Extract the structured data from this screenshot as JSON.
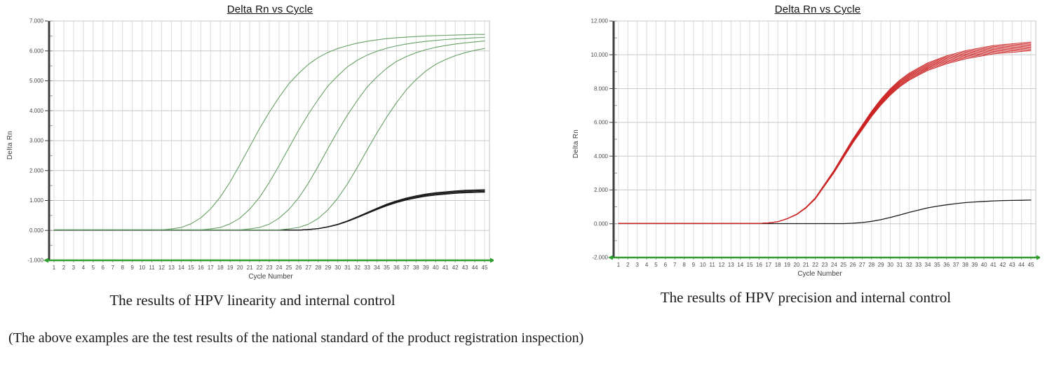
{
  "palette": {
    "hpv_green": "#67a067",
    "hpv_red": "#cc2323",
    "internal_control_black": "#1b1b1b",
    "baseline_green": "#2f9e2f",
    "grid_vertical": "#dcdcdc",
    "grid_horizontal": "#c8c8c8",
    "plot_border": "#c2c2c2",
    "axis_dark": "#3f3f3f",
    "tick_text": "#4d4d4d"
  },
  "footnote": "(The above examples are the test results of the national standard of the product registration inspection)",
  "chart_data": [
    {
      "type": "line",
      "title": "Delta Rn vs Cycle",
      "xlabel": "Cycle Number",
      "ylabel": "Delta Rn",
      "caption": "The results of HPV linearity and internal control",
      "x_range": [
        1,
        45
      ],
      "ylim": [
        -1,
        7
      ],
      "y_major_step": 1,
      "y_minor_step": 0.5,
      "y_tick_labels": [
        "7.000",
        "6.000",
        "5.000",
        "4.000",
        "3.000",
        "2.000",
        "1.000",
        "0.000",
        "-1.000"
      ],
      "grid": true,
      "legend": "none",
      "series": [
        {
          "name": "internal-control",
          "color": "#1b1b1b",
          "width": 1.2,
          "replicates": 4,
          "spread": 0.032,
          "values": [
            0.01,
            0.01,
            0.01,
            0.01,
            0.01,
            0.01,
            0.01,
            0.01,
            0.01,
            0.01,
            0.01,
            0.01,
            0.01,
            0.01,
            0.01,
            0.01,
            0.01,
            0.01,
            0.01,
            0.01,
            0.01,
            0.01,
            0.01,
            0.01,
            0.01,
            0.01,
            0.03,
            0.06,
            0.12,
            0.2,
            0.31,
            0.44,
            0.58,
            0.72,
            0.85,
            0.96,
            1.05,
            1.12,
            1.18,
            1.22,
            1.25,
            1.28,
            1.3,
            1.31,
            1.32
          ]
        },
        {
          "name": "hpv-linearity-curve-1",
          "color": "#67a067",
          "width": 1.1,
          "replicates": 1,
          "spread": 0,
          "values": [
            0.02,
            0.02,
            0.02,
            0.02,
            0.02,
            0.02,
            0.02,
            0.02,
            0.02,
            0.02,
            0.02,
            0.02,
            0.05,
            0.1,
            0.22,
            0.42,
            0.72,
            1.12,
            1.62,
            2.2,
            2.8,
            3.4,
            3.95,
            4.45,
            4.9,
            5.25,
            5.55,
            5.78,
            5.95,
            6.08,
            6.18,
            6.26,
            6.32,
            6.37,
            6.41,
            6.44,
            6.46,
            6.48,
            6.5,
            6.51,
            6.52,
            6.53,
            6.54,
            6.55,
            6.55
          ]
        },
        {
          "name": "hpv-linearity-curve-2",
          "color": "#67a067",
          "width": 1.1,
          "replicates": 1,
          "spread": 0,
          "values": [
            0.02,
            0.02,
            0.02,
            0.02,
            0.02,
            0.02,
            0.02,
            0.02,
            0.02,
            0.02,
            0.02,
            0.02,
            0.02,
            0.02,
            0.02,
            0.02,
            0.05,
            0.1,
            0.22,
            0.41,
            0.71,
            1.1,
            1.6,
            2.17,
            2.76,
            3.35,
            3.89,
            4.38,
            4.83,
            5.17,
            5.47,
            5.69,
            5.86,
            5.99,
            6.09,
            6.17,
            6.23,
            6.28,
            6.32,
            6.35,
            6.38,
            6.4,
            6.42,
            6.44,
            6.45
          ]
        },
        {
          "name": "hpv-linearity-curve-3",
          "color": "#67a067",
          "width": 1.1,
          "replicates": 1,
          "spread": 0,
          "values": [
            0.02,
            0.02,
            0.02,
            0.02,
            0.02,
            0.02,
            0.02,
            0.02,
            0.02,
            0.02,
            0.02,
            0.02,
            0.02,
            0.02,
            0.02,
            0.02,
            0.02,
            0.02,
            0.02,
            0.02,
            0.05,
            0.1,
            0.21,
            0.41,
            0.7,
            1.09,
            1.58,
            2.15,
            2.74,
            3.32,
            3.86,
            4.35,
            4.79,
            5.13,
            5.42,
            5.65,
            5.81,
            5.94,
            6.04,
            6.12,
            6.18,
            6.23,
            6.27,
            6.3,
            6.33
          ]
        },
        {
          "name": "hpv-linearity-curve-4",
          "color": "#67a067",
          "width": 1.1,
          "replicates": 1,
          "spread": 0,
          "values": [
            0.02,
            0.02,
            0.02,
            0.02,
            0.02,
            0.02,
            0.02,
            0.02,
            0.02,
            0.02,
            0.02,
            0.02,
            0.02,
            0.02,
            0.02,
            0.02,
            0.02,
            0.02,
            0.02,
            0.02,
            0.02,
            0.02,
            0.02,
            0.02,
            0.05,
            0.1,
            0.21,
            0.4,
            0.69,
            1.08,
            1.56,
            2.11,
            2.69,
            3.26,
            3.79,
            4.27,
            4.7,
            5.04,
            5.33,
            5.55,
            5.71,
            5.84,
            5.94,
            6.02,
            6.08
          ]
        }
      ]
    },
    {
      "type": "line",
      "title": "Delta Rn vs Cycle",
      "xlabel": "Cycle Number",
      "ylabel": "Delta Rn",
      "caption": "The results of HPV precision and internal control",
      "x_range": [
        1,
        45
      ],
      "ylim": [
        -2,
        12
      ],
      "y_major_step": 2,
      "y_minor_step": 1,
      "y_tick_labels": [
        "12.000",
        "10.000",
        "8.000",
        "6.000",
        "4.000",
        "2.000",
        "0.000",
        "-2.000"
      ],
      "grid": true,
      "legend": "none",
      "series": [
        {
          "name": "internal-control",
          "color": "#1b1b1b",
          "width": 1.3,
          "replicates": 1,
          "spread": 0,
          "values": [
            0.01,
            0.01,
            0.01,
            0.01,
            0.01,
            0.01,
            0.01,
            0.01,
            0.01,
            0.01,
            0.01,
            0.01,
            0.01,
            0.01,
            0.01,
            0.01,
            0.01,
            0.01,
            0.01,
            0.01,
            0.01,
            0.01,
            0.01,
            0.01,
            0.01,
            0.03,
            0.07,
            0.14,
            0.24,
            0.37,
            0.52,
            0.67,
            0.81,
            0.94,
            1.04,
            1.12,
            1.19,
            1.25,
            1.29,
            1.32,
            1.35,
            1.37,
            1.38,
            1.39,
            1.4
          ]
        },
        {
          "name": "hpv-precision-replicates",
          "color": "#cc2323",
          "width": 1.0,
          "replicates": 8,
          "spread": 0.024,
          "values": [
            0.02,
            0.02,
            0.02,
            0.02,
            0.02,
            0.02,
            0.02,
            0.02,
            0.02,
            0.02,
            0.02,
            0.02,
            0.02,
            0.02,
            0.02,
            0.02,
            0.05,
            0.12,
            0.3,
            0.55,
            0.95,
            1.5,
            2.3,
            3.1,
            4.0,
            4.9,
            5.7,
            6.5,
            7.2,
            7.8,
            8.3,
            8.7,
            9.0,
            9.3,
            9.5,
            9.7,
            9.85,
            10.0,
            10.1,
            10.2,
            10.3,
            10.35,
            10.4,
            10.45,
            10.5
          ]
        }
      ]
    }
  ]
}
